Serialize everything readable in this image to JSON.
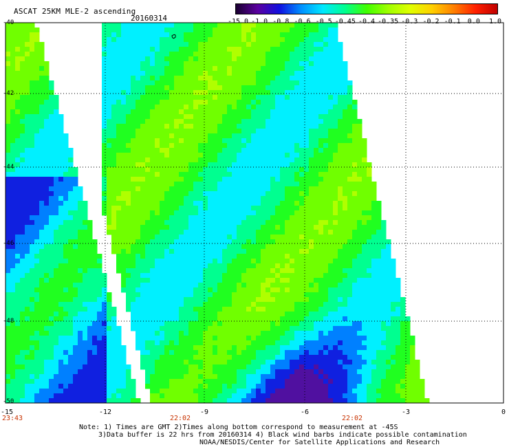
{
  "header": {
    "title": "ASCAT 25KM MLE-2 ascending",
    "date": "20160314"
  },
  "colorbar": {
    "labels": [
      "-15.0",
      "-1.0",
      "-0.8",
      "-0.6",
      "-0.5",
      "-0.45",
      "-0.4",
      "-0.35",
      "-0.3",
      "-0.2",
      "-0.1",
      "0.0",
      "1.0"
    ],
    "colors": [
      "#1a0030",
      "#5a00a0",
      "#1010e0",
      "#0090ff",
      "#00e8ff",
      "#00ff90",
      "#40ff00",
      "#a0ff00",
      "#e0ff00",
      "#ffd000",
      "#ff8000",
      "#ff2000",
      "#c00000"
    ]
  },
  "axes": {
    "lat_labels": [
      "-40",
      "-42",
      "-44",
      "-46",
      "-48",
      "-50"
    ],
    "lon_labels": [
      "-15",
      "-12",
      "-9",
      "-6",
      "-3",
      "0"
    ],
    "time_labels": [
      "23:43",
      "22:02",
      "22:02"
    ]
  },
  "notes": {
    "line1": "Note: 1) Times are GMT 2)Times along bottom correspond to measurement at -45S",
    "line2": "3)Data buffer is 22 hrs from 20160314 4) Black wind barbs indicate possible contamination",
    "line3": "NOAA/NESDIS/Center for Satellite Applications and Research"
  }
}
